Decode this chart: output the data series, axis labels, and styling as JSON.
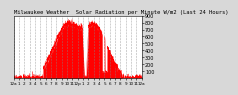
{
  "title": "Milwaukee Weather  Solar Radiation per Minute W/m2 (Last 24 Hours)",
  "title_fontsize": 4.0,
  "background_color": "#d8d8d8",
  "plot_bg_color": "#ffffff",
  "line_color": "#ff0000",
  "fill_color": "#ff0000",
  "grid_color": "#888888",
  "ylim": [
    0,
    900
  ],
  "ytick_values": [
    100,
    200,
    300,
    400,
    500,
    600,
    700,
    800,
    900
  ],
  "ylabel_fontsize": 3.5,
  "xlabel_fontsize": 3.0,
  "num_points": 1440,
  "x_tick_positions": [
    0,
    1,
    2,
    3,
    4,
    5,
    6,
    7,
    8,
    9,
    10,
    11,
    12,
    13,
    14,
    15,
    16,
    17,
    18,
    19,
    20,
    21,
    22,
    23,
    24
  ],
  "x_tick_labels": [
    "12a",
    "1",
    "2",
    "3",
    "4",
    "5",
    "6",
    "7",
    "8",
    "9",
    "10",
    "11",
    "12p",
    "1",
    "2",
    "3",
    "4",
    "5",
    "6",
    "7",
    "8",
    "9",
    "10",
    "11",
    "12a"
  ]
}
